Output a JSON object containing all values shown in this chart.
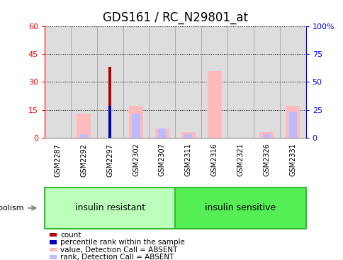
{
  "title": "GDS161 / RC_N29801_at",
  "samples": [
    "GSM2287",
    "GSM2292",
    "GSM2297",
    "GSM2302",
    "GSM2307",
    "GSM2311",
    "GSM2316",
    "GSM2321",
    "GSM2326",
    "GSM2331"
  ],
  "count_values": [
    0,
    0,
    38,
    0,
    0,
    0,
    0,
    0,
    0,
    0
  ],
  "percentile_rank_values": [
    0,
    0,
    17,
    0,
    0,
    0,
    0,
    0,
    0,
    0
  ],
  "absent_value_values": [
    0,
    13,
    0,
    17,
    5,
    3,
    36,
    0,
    3,
    17
  ],
  "absent_rank_values": [
    0,
    2,
    0,
    13,
    5,
    2,
    0,
    0,
    2,
    14
  ],
  "ylim_left": [
    0,
    60
  ],
  "ylim_right": [
    0,
    100
  ],
  "yticks_left": [
    0,
    15,
    30,
    45,
    60
  ],
  "ytick_labels_left": [
    "0",
    "15",
    "30",
    "45",
    "60"
  ],
  "yticks_right": [
    0,
    25,
    50,
    75,
    100
  ],
  "ytick_labels_right": [
    "0",
    "25",
    "50",
    "75",
    "100%"
  ],
  "group_label_resistant": "insulin resistant",
  "group_label_sensitive": "insulin sensitive",
  "group_color_resistant": "#bbffbb",
  "group_color_sensitive": "#55ee55",
  "metabolism_label": "metabolism",
  "bar_width": 0.55,
  "colors": {
    "count": "#bb0000",
    "percentile_rank": "#0000bb",
    "absent_value": "#ffbbbb",
    "absent_rank": "#bbbbff"
  },
  "legend_labels": [
    "count",
    "percentile rank within the sample",
    "value, Detection Call = ABSENT",
    "rank, Detection Call = ABSENT"
  ],
  "bg_color_axes": "#dddddd",
  "dotted_line_color": "#333333",
  "title_fontsize": 12,
  "tick_fontsize": 8,
  "label_fontsize": 8
}
